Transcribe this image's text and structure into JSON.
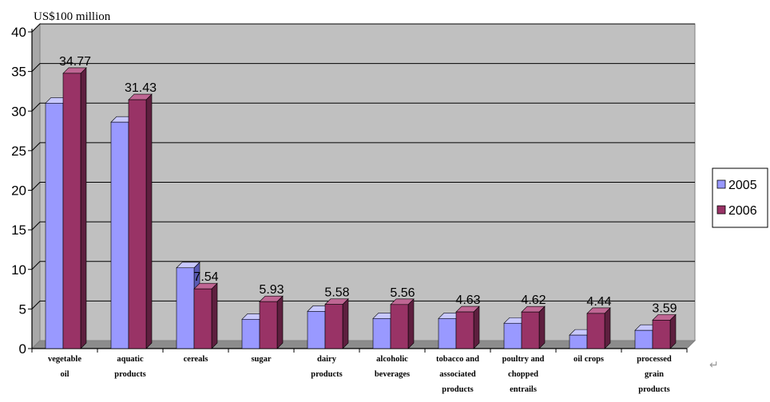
{
  "chart_data": {
    "type": "bar",
    "unit_label": "US$100 million",
    "categories": [
      [
        "vegetable",
        "oil"
      ],
      [
        "aquatic",
        "products"
      ],
      [
        "cereals"
      ],
      [
        "sugar"
      ],
      [
        "dairy",
        "products"
      ],
      [
        "alcoholic",
        "beverages"
      ],
      [
        "tobacco and",
        "associated",
        "products"
      ],
      [
        "poultry and",
        "chopped",
        "entrails"
      ],
      [
        "oil crops"
      ],
      [
        "processed",
        "grain",
        "products"
      ]
    ],
    "series": [
      {
        "name": "2005",
        "values": [
          31.0,
          28.6,
          10.2,
          3.7,
          4.7,
          3.8,
          3.8,
          3.2,
          1.7,
          2.3
        ]
      },
      {
        "name": "2006",
        "values": [
          34.77,
          31.43,
          7.54,
          5.93,
          5.58,
          5.56,
          4.63,
          4.62,
          4.44,
          3.59
        ]
      }
    ],
    "data_labels": [
      "34.77",
      "31.43",
      "7.54",
      "5.93",
      "5.58",
      "5.56",
      "4.63",
      "4.62",
      "4.44",
      "3.59"
    ],
    "ylim": [
      0,
      40
    ],
    "yticks": [
      0,
      5,
      10,
      15,
      20,
      25,
      30,
      35,
      40
    ],
    "grid": true,
    "legend_position": "right",
    "colors": {
      "series_2005": "#9999FF",
      "series_2005_top": "#C8C8FF",
      "series_2005_side": "#5A5AB4",
      "series_2006": "#993366",
      "series_2006_top": "#BF6693",
      "series_2006_side": "#5E1F3F",
      "plot_bg": "#C0C0C0",
      "plot_wall": "#A8A8A8",
      "plot_floor": "#8C8C8C",
      "grid": "#000000"
    }
  }
}
